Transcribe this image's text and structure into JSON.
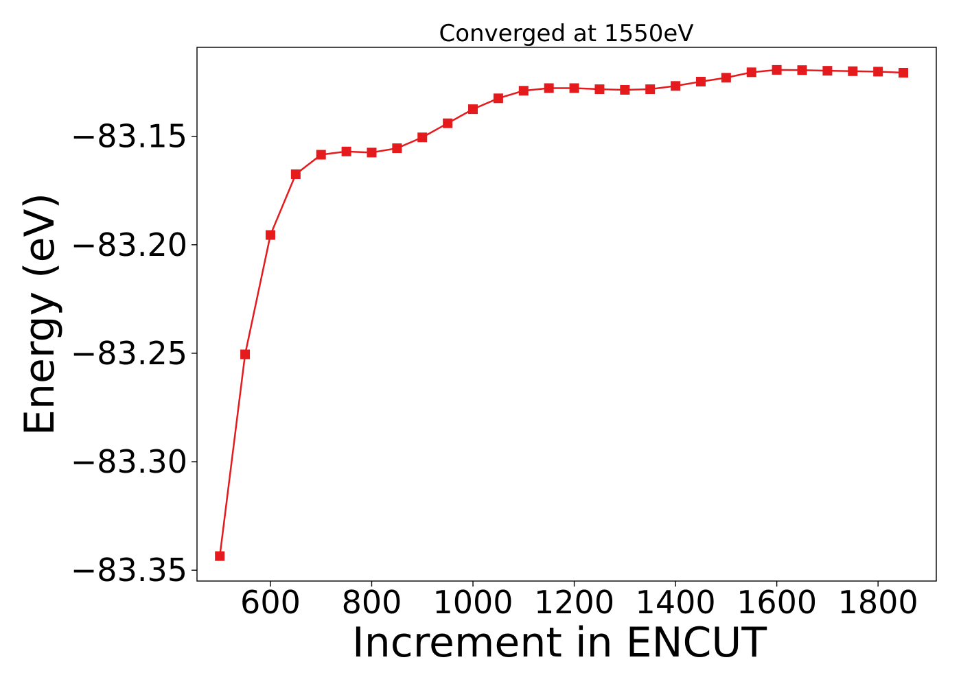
{
  "chart_data": {
    "type": "line",
    "title": "Converged at 1550eV",
    "xlabel": "Increment in ENCUT",
    "ylabel": "Energy (eV)",
    "xlim": [
      455,
      1915
    ],
    "ylim": [
      -83.355,
      -83.109
    ],
    "x_ticks": [
      600,
      800,
      1000,
      1200,
      1400,
      1600,
      1800
    ],
    "y_ticks": [
      -83.35,
      -83.3,
      -83.25,
      -83.2,
      -83.15
    ],
    "x_tick_labels": [
      "600",
      "800",
      "1000",
      "1200",
      "1400",
      "1600",
      "1800"
    ],
    "y_tick_labels": [
      "−83.35",
      "−83.30",
      "−83.25",
      "−83.20",
      "−83.15"
    ],
    "grid": false,
    "colors": {
      "line": "#e41a1c",
      "marker": "#e41a1c"
    },
    "marker": "square",
    "series": [
      {
        "x": [
          500,
          550,
          600,
          650,
          700,
          750,
          800,
          850,
          900,
          950,
          1000,
          1050,
          1100,
          1150,
          1200,
          1250,
          1300,
          1350,
          1400,
          1450,
          1500,
          1550,
          1600,
          1650,
          1700,
          1750,
          1800,
          1850
        ],
        "values": [
          -83.3435,
          -83.2505,
          -83.1955,
          -83.1675,
          -83.1585,
          -83.157,
          -83.1575,
          -83.1555,
          -83.1505,
          -83.144,
          -83.1375,
          -83.1325,
          -83.129,
          -83.1278,
          -83.1278,
          -83.1283,
          -83.1286,
          -83.1283,
          -83.1268,
          -83.1248,
          -83.123,
          -83.1205,
          -83.1194,
          -83.1195,
          -83.1198,
          -83.12,
          -83.1202,
          -83.1207
        ]
      }
    ]
  }
}
